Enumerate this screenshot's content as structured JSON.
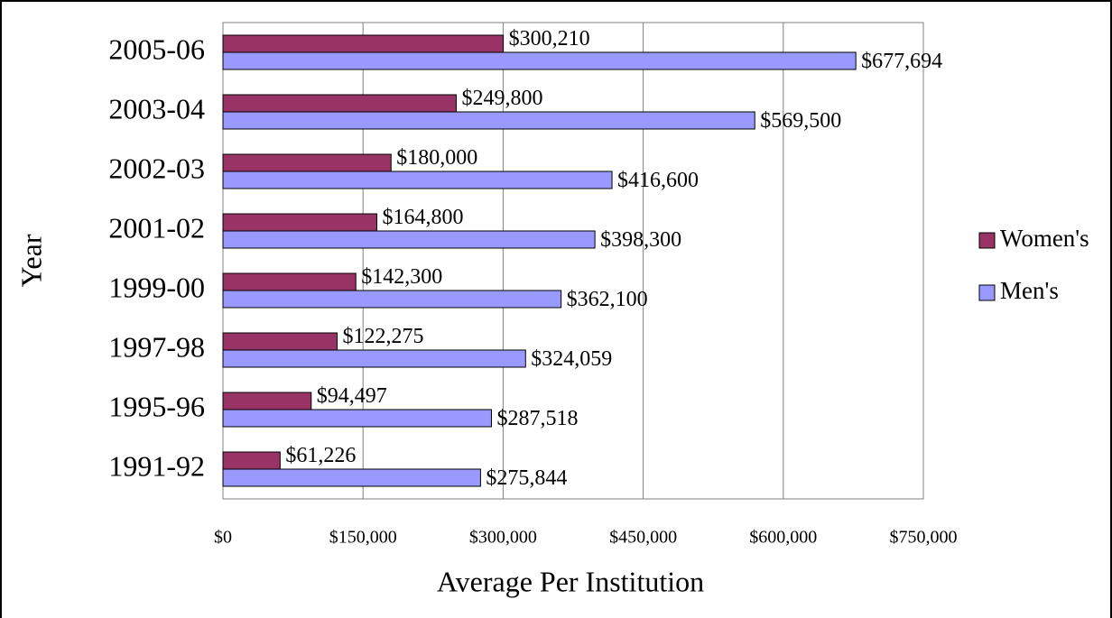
{
  "chart_data": {
    "type": "barh",
    "xlabel": "Average Per Institution",
    "ylabel": "Year",
    "categories": [
      "2005-06",
      "2003-04",
      "2002-03",
      "2001-02",
      "1999-00",
      "1997-98",
      "1995-96",
      "1991-92"
    ],
    "series": [
      {
        "name": "Women's",
        "color": "#993366",
        "values": [
          300210,
          249800,
          180000,
          164800,
          142300,
          122275,
          94497,
          61226
        ],
        "value_labels": [
          "$300,210",
          "$249,800",
          "$180,000",
          "$164,800",
          "$142,300",
          "$122,275",
          "$94,497",
          "$61,226"
        ]
      },
      {
        "name": "Men's",
        "color": "#9999ff",
        "values": [
          677694,
          569500,
          416600,
          398300,
          362100,
          324059,
          287518,
          275844
        ],
        "value_labels": [
          "$677,694",
          "$569,500",
          "$416,600",
          "$398,300",
          "$362,100",
          "$324,059",
          "$287,518",
          "$275,844"
        ]
      }
    ],
    "xlim": [
      0,
      750000
    ],
    "xticks": [
      {
        "value": 0,
        "label": "$0"
      },
      {
        "value": 150000,
        "label": "$150,000"
      },
      {
        "value": 300000,
        "label": "$300,000"
      },
      {
        "value": 450000,
        "label": "$450,000"
      },
      {
        "value": 600000,
        "label": "$600,000"
      },
      {
        "value": 750000,
        "label": "$750,000"
      }
    ],
    "grid": true,
    "legend": "right"
  }
}
